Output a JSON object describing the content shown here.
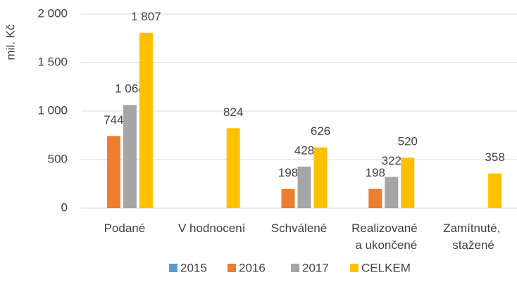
{
  "chart_data": {
    "type": "bar",
    "y_label": "mil. Kč",
    "categories": [
      "Podané",
      "V hodnocení",
      "Schválené",
      "Realizované\na ukončené",
      "Zamítnuté,\nstažené"
    ],
    "series": [
      {
        "name": "2015",
        "color": "#5b9bd5",
        "values": [
          null,
          null,
          null,
          null,
          null
        ]
      },
      {
        "name": "2016",
        "color": "#ed7d31",
        "values": [
          744,
          null,
          198,
          198,
          null
        ]
      },
      {
        "name": "2017",
        "color": "#a5a5a5",
        "values": [
          1064,
          null,
          428,
          322,
          null
        ],
        "value_labels": [
          "1 064",
          null,
          "428",
          "322",
          null
        ]
      },
      {
        "name": "CELKEM",
        "color": "#ffc000",
        "values": [
          1807,
          824,
          626,
          520,
          358
        ],
        "value_labels": [
          "1 807",
          "824",
          "626",
          "520",
          "358"
        ]
      }
    ],
    "ylim": [
      0,
      2000
    ],
    "yticks": [
      0,
      500,
      {
        "value": 1000,
        "label": "1 000"
      },
      {
        "value": 1500,
        "label": "1 500"
      },
      {
        "value": 2000,
        "label": "2 000"
      }
    ],
    "grid": true,
    "legend": "bottom"
  }
}
